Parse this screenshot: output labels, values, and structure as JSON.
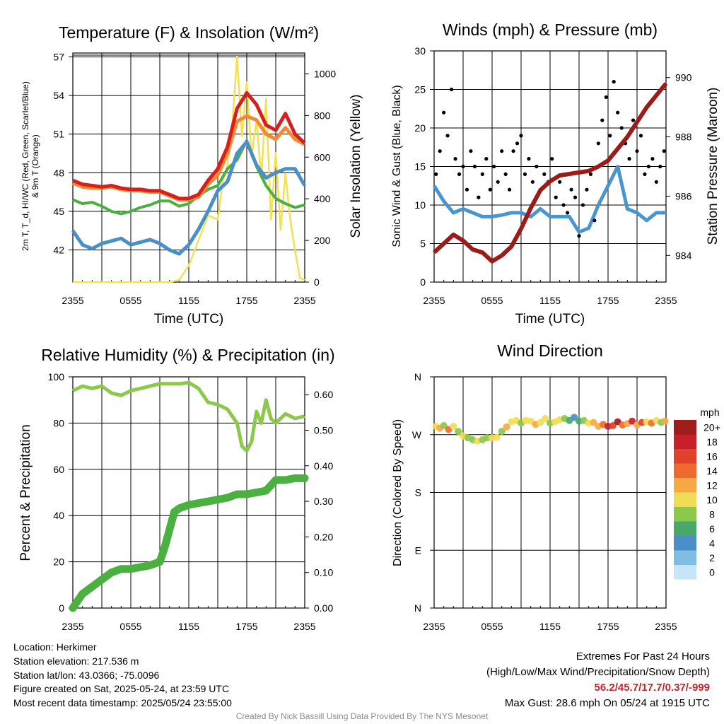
{
  "panels": {
    "temperature": {
      "title": "Temperature (F) & Insolation (W/m²)",
      "ylabel_left_line1": "2m T, T_d, HI/WC (Red, Green, Scarlet/Blue)",
      "ylabel_left_line2": "& 9m T (Orange)",
      "ylabel_right": "Solar Insolation (Yellow)",
      "xlabel": "Time (UTC)"
    },
    "winds": {
      "title": "Winds (mph) & Pressure (mb)",
      "ylabel_left": "Sonic Wind & Gust (Blue, Black)",
      "ylabel_right": "Station Pressure (Maroon)",
      "xlabel": "Time (UTC)"
    },
    "humidity": {
      "title": "Relative Humidity (%) & Precipitation (in)",
      "ylabel_left": "Percent & Precipitation"
    },
    "direction": {
      "title": "Wind Direction",
      "ylabel_left": "Direction (Colored By Speed)",
      "colorbar_title": "mph"
    }
  },
  "footer": {
    "location": "Location: Herkimer",
    "elevation": "Station elevation: 217.536 m",
    "latlon": "Station lat/lon: 43.0366; -75.0096",
    "created": "Figure created on Sat, 2025-05-24, at 23:59 UTC",
    "recent": "Most recent data timestamp: 2025/05/24 23:55:00",
    "extremes_title": "Extremes For Past 24 Hours",
    "extremes_subtitle": "(High/Low/Max Wind/Precipitation/Snow Depth)",
    "extremes_values": "56.2/45.7/17.7/0.37/-999",
    "max_gust": "Max Gust: 28.6 mph On 05/24 at 1915 UTC",
    "credit": "Created By Nick Bassill Using Data Provided By The NYS Mesonet"
  },
  "colors": {
    "temperature": "#d62020",
    "dewpoint": "#4ab040",
    "heat_index": "#4a90c8",
    "temp_9m": "#f28a30",
    "insolation": "#f5e050",
    "wind": "#4a94d0",
    "gust": "#000000",
    "pressure": "#9b1b1b",
    "rh": "#8cc84a",
    "precip": "#4ab040"
  },
  "chart_data": [
    {
      "id": "temperature",
      "type": "line",
      "x_ticks": [
        "2355",
        "0555",
        "1155",
        "1755",
        "2355"
      ],
      "x_unit": "hours since 2355 UTC (05/23)",
      "ylim": [
        39.5,
        57.3
      ],
      "y_ticks": [
        42,
        45,
        48,
        51,
        54,
        57
      ],
      "y2lim": [
        0,
        1100
      ],
      "y2_ticks": [
        0,
        200,
        400,
        600,
        800,
        1000
      ],
      "series": [
        {
          "key": "temp_9m",
          "axis": "left",
          "x": [
            0,
            1,
            2,
            3,
            4,
            5,
            6,
            7,
            8,
            9,
            10,
            11,
            12,
            13,
            14,
            15,
            16,
            17,
            18,
            19,
            20,
            21,
            22,
            23,
            24
          ],
          "values": [
            47.2,
            46.9,
            46.8,
            46.8,
            46.9,
            46.7,
            46.6,
            46.6,
            46.5,
            46.5,
            46.2,
            45.9,
            45.9,
            46.1,
            47.1,
            47.8,
            49.5,
            52.0,
            52.4,
            52.1,
            51.0,
            50.6,
            51.5,
            50.6,
            50.2
          ]
        },
        {
          "key": "temperature",
          "axis": "left",
          "x": [
            0,
            1,
            2,
            3,
            4,
            5,
            6,
            7,
            8,
            9,
            10,
            11,
            12,
            13,
            14,
            15,
            16,
            17,
            18,
            19,
            20,
            21,
            22,
            23,
            24
          ],
          "values": [
            47.4,
            47.1,
            47.0,
            46.9,
            47.0,
            46.8,
            46.7,
            46.7,
            46.6,
            46.6,
            46.3,
            46.0,
            46.0,
            46.3,
            47.4,
            48.3,
            50.0,
            53.0,
            54.2,
            53.3,
            51.7,
            51.3,
            52.6,
            51.0,
            50.3
          ]
        },
        {
          "key": "dewpoint",
          "axis": "left",
          "x": [
            0,
            1,
            2,
            3,
            4,
            5,
            6,
            7,
            8,
            9,
            10,
            11,
            12,
            13,
            14,
            15,
            16,
            17,
            18,
            19,
            20,
            21,
            22,
            23,
            24
          ],
          "values": [
            45.9,
            45.6,
            45.7,
            45.4,
            45.0,
            44.8,
            45.0,
            45.3,
            45.5,
            45.8,
            45.8,
            45.4,
            45.6,
            46.2,
            46.7,
            47.0,
            48.3,
            49.0,
            50.5,
            48.5,
            47.0,
            46.0,
            45.6,
            45.3,
            45.5
          ]
        },
        {
          "key": "heat_index",
          "axis": "left",
          "x": [
            0,
            1,
            2,
            3,
            4,
            5,
            6,
            7,
            8,
            9,
            10,
            11,
            12,
            13,
            14,
            15,
            16,
            17,
            18,
            19,
            20,
            21,
            22,
            23,
            24
          ],
          "values": [
            43.5,
            42.4,
            42.1,
            42.5,
            42.7,
            42.9,
            42.4,
            42.6,
            42.8,
            42.5,
            42.0,
            41.7,
            42.4,
            43.6,
            45.0,
            46.6,
            47.3,
            49.5,
            50.4,
            48.6,
            47.6,
            48.0,
            48.3,
            48.3,
            47.0
          ]
        },
        {
          "key": "insolation",
          "axis": "right",
          "x": [
            0,
            2,
            4,
            6,
            8,
            10,
            11,
            12,
            13,
            14,
            15,
            15.5,
            16,
            16.5,
            17,
            17.5,
            18,
            18.5,
            19,
            19.5,
            20,
            20.5,
            21,
            21.5,
            22,
            22.5,
            23,
            23.5,
            24
          ],
          "values": [
            0,
            0,
            0,
            0,
            0,
            0,
            10,
            80,
            200,
            320,
            300,
            480,
            560,
            760,
            1080,
            700,
            960,
            600,
            780,
            500,
            880,
            300,
            620,
            250,
            520,
            300,
            150,
            20,
            10
          ]
        }
      ]
    },
    {
      "id": "winds",
      "type": "line",
      "x_ticks": [
        "2355",
        "0555",
        "1155",
        "1755",
        "2355"
      ],
      "x_unit": "hours since 2355 UTC (05/23)",
      "ylim": [
        0,
        30
      ],
      "y_ticks": [
        0,
        5,
        10,
        15,
        20,
        25,
        30
      ],
      "y2lim": [
        983.1,
        990.9
      ],
      "y2_ticks": [
        984,
        986,
        988,
        990
      ],
      "series": [
        {
          "key": "wind",
          "axis": "left",
          "x": [
            0,
            1,
            2,
            3,
            4,
            5,
            6,
            7,
            8,
            9,
            10,
            11,
            12,
            13,
            14,
            15,
            16,
            17,
            18,
            19,
            20,
            21,
            22,
            23,
            24
          ],
          "values": [
            12.5,
            10.5,
            9.0,
            9.5,
            9.0,
            8.5,
            8.5,
            8.7,
            9.0,
            9.0,
            8.5,
            9.5,
            8.5,
            8.5,
            8.5,
            6.5,
            7.0,
            10.0,
            12.5,
            15.0,
            9.5,
            9.0,
            8.0,
            9.0,
            9.0
          ]
        },
        {
          "key": "gust",
          "axis": "left",
          "type": "scatter",
          "x": [
            0.2,
            0.6,
            1.0,
            1.4,
            1.8,
            2.2,
            2.6,
            3.0,
            3.4,
            3.8,
            4.2,
            4.6,
            5.0,
            5.4,
            5.8,
            6.2,
            6.6,
            7.0,
            7.4,
            7.8,
            8.2,
            8.6,
            9.0,
            9.4,
            9.8,
            10.2,
            10.6,
            11.0,
            11.4,
            11.8,
            12.2,
            12.6,
            13.0,
            13.4,
            13.8,
            14.2,
            14.6,
            15.0,
            15.4,
            15.8,
            16.2,
            16.6,
            17.0,
            17.4,
            17.8,
            18.2,
            18.6,
            19.0,
            19.4,
            19.8,
            20.2,
            20.6,
            21.0,
            21.4,
            21.8,
            22.2,
            22.6,
            23.0,
            23.4,
            23.8
          ],
          "values": [
            14,
            17,
            22,
            19,
            25,
            16,
            14,
            15,
            12,
            17,
            15,
            11,
            14,
            16,
            12,
            15,
            13,
            17,
            14,
            12,
            17,
            18,
            19,
            14,
            16,
            13,
            15,
            12,
            14,
            13,
            16,
            11,
            13,
            10,
            9,
            12,
            11,
            6,
            10,
            12,
            14,
            8,
            18,
            21,
            24,
            19,
            26,
            22,
            20,
            18,
            16,
            21,
            17,
            19,
            14,
            15,
            16,
            13,
            15,
            17
          ]
        },
        {
          "key": "pressure",
          "axis": "right",
          "x": [
            0,
            1,
            2,
            3,
            4,
            5,
            6,
            7,
            8,
            9,
            10,
            11,
            12,
            13,
            14,
            15,
            16,
            17,
            18,
            19,
            20,
            21,
            22,
            23,
            24
          ],
          "values": [
            984.1,
            984.4,
            984.7,
            984.5,
            984.2,
            984.1,
            983.8,
            984.0,
            984.3,
            984.9,
            985.6,
            986.2,
            986.5,
            986.7,
            986.75,
            986.8,
            986.85,
            987.0,
            987.2,
            987.6,
            988.0,
            988.5,
            989.0,
            989.4,
            989.8
          ]
        }
      ]
    },
    {
      "id": "humidity",
      "type": "line",
      "x_ticks": [
        "2355",
        "0555",
        "1155",
        "1755",
        "2355"
      ],
      "x_unit": "hours since 2355 UTC (05/23)",
      "ylim": [
        0,
        100
      ],
      "y_ticks": [
        0,
        20,
        40,
        60,
        80,
        100
      ],
      "y2lim": [
        0,
        0.65
      ],
      "y2_ticks": [
        "0.00",
        "0.10",
        "0.20",
        "0.30",
        "0.40",
        "0.50",
        "0.60"
      ],
      "series": [
        {
          "key": "rh",
          "axis": "left",
          "x": [
            0,
            1,
            2,
            3,
            4,
            5,
            6,
            7,
            8,
            9,
            10,
            11,
            12,
            13,
            14,
            15,
            16,
            17,
            17.5,
            18,
            18.5,
            19,
            19.5,
            20,
            20.5,
            21,
            22,
            23,
            24
          ],
          "values": [
            94,
            96,
            95,
            96,
            93,
            92,
            94,
            95,
            96,
            97,
            97,
            97,
            97.5,
            95,
            89,
            88,
            86,
            80,
            70,
            68,
            72,
            85,
            80,
            90,
            82,
            80,
            84,
            82,
            83
          ]
        },
        {
          "key": "precip",
          "axis": "right",
          "x": [
            0,
            0.5,
            1,
            2,
            3,
            4,
            5,
            6,
            7,
            8,
            9,
            9.5,
            10,
            10.5,
            11,
            11.5,
            12,
            13,
            14,
            15,
            16,
            17,
            18,
            19,
            20,
            20.5,
            21,
            22,
            23,
            24
          ],
          "values": [
            0,
            0.02,
            0.04,
            0.06,
            0.08,
            0.1,
            0.11,
            0.11,
            0.115,
            0.12,
            0.13,
            0.17,
            0.22,
            0.27,
            0.28,
            0.285,
            0.29,
            0.295,
            0.3,
            0.305,
            0.31,
            0.32,
            0.32,
            0.325,
            0.33,
            0.345,
            0.36,
            0.36,
            0.365,
            0.365
          ]
        }
      ]
    },
    {
      "id": "direction",
      "type": "scatter",
      "x_ticks": [
        "2355",
        "0555",
        "1155",
        "1755",
        "2355"
      ],
      "x_unit": "hours since 2355 UTC (05/23)",
      "y_ticks": [
        "N",
        "W",
        "S",
        "E",
        "N"
      ],
      "ylim": [
        0,
        360
      ],
      "y_unit": "degrees, N at top, decreasing W(270)/S(180)/E(90)/N(0) downward",
      "colorbar": {
        "title": "mph",
        "labels": [
          "20+",
          "18",
          "16",
          "14",
          "12",
          "10",
          "8",
          "6",
          "4",
          "2",
          "0"
        ],
        "colors": [
          "#9e1c1c",
          "#c8202a",
          "#e0402c",
          "#f06a30",
          "#f8a845",
          "#f2dc55",
          "#8cc84a",
          "#4aa868",
          "#4a8fc8",
          "#80bce4",
          "#c4e6f8"
        ]
      },
      "x": [
        0.2,
        0.6,
        1.0,
        1.5,
        2.0,
        2.5,
        3.0,
        3.5,
        4.0,
        4.5,
        5.0,
        5.5,
        6.0,
        6.5,
        7.0,
        7.5,
        8.0,
        8.5,
        9.0,
        9.5,
        10.0,
        10.5,
        11.0,
        11.5,
        12.0,
        12.5,
        13.0,
        13.5,
        14.0,
        14.5,
        15.0,
        15.5,
        16.0,
        16.5,
        17.0,
        17.5,
        18.0,
        18.5,
        19.0,
        19.5,
        20.0,
        20.5,
        21.0,
        21.5,
        22.0,
        22.5,
        23.0,
        23.5,
        23.9
      ],
      "values": [
        283,
        280,
        284,
        278,
        283,
        275,
        268,
        265,
        262,
        260,
        262,
        265,
        265,
        266,
        275,
        282,
        290,
        292,
        288,
        292,
        291,
        286,
        289,
        295,
        288,
        290,
        293,
        295,
        292,
        297,
        291,
        292,
        288,
        289,
        283,
        286,
        283,
        284,
        290,
        285,
        287,
        291,
        285,
        289,
        290,
        288,
        292,
        289,
        291
      ],
      "speeds": [
        9,
        12,
        8,
        13,
        9,
        8,
        10,
        8,
        7,
        9,
        7,
        8,
        10,
        9,
        8,
        11,
        9,
        10,
        8,
        10,
        9,
        11,
        10,
        9,
        8,
        9,
        10,
        7,
        6,
        4,
        5,
        8,
        9,
        11,
        12,
        13,
        18,
        15,
        20,
        14,
        12,
        18,
        11,
        16,
        9,
        13,
        10,
        8,
        12
      ]
    }
  ]
}
